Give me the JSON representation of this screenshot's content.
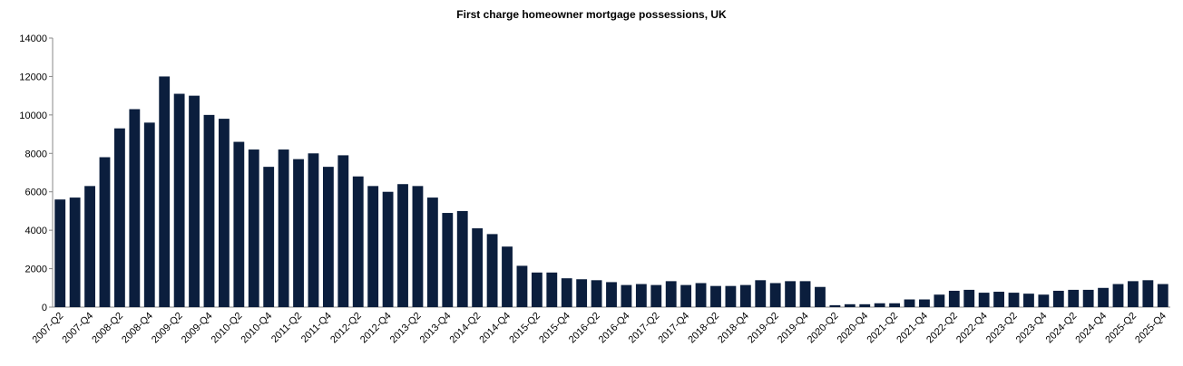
{
  "chart_data": {
    "type": "bar",
    "title": "First charge homeowner mortgage possessions, UK",
    "categories": [
      "2007-Q2",
      null,
      "2007-Q4",
      null,
      "2008-Q2",
      null,
      "2008-Q4",
      null,
      "2009-Q2",
      null,
      "2009-Q4",
      null,
      "2010-Q2",
      null,
      "2010-Q4",
      null,
      "2011-Q2",
      null,
      "2011-Q4",
      null,
      "2012-Q2",
      null,
      "2012-Q4",
      null,
      "2013-Q2",
      null,
      "2013-Q4",
      null,
      "2014-Q2",
      null,
      "2014-Q4",
      null,
      "2015-Q2",
      null,
      "2015-Q4",
      null,
      "2016-Q2",
      null,
      "2016-Q4",
      null,
      "2017-Q2",
      null,
      "2017-Q4",
      null,
      "2018-Q2",
      null,
      "2018-Q4",
      null,
      "2019-Q2",
      null,
      "2019-Q4",
      null,
      "2020-Q2",
      null,
      "2020-Q4",
      null,
      "2021-Q2",
      null,
      "2021-Q4",
      null,
      "2022-Q2",
      null,
      "2022-Q4",
      null,
      "2023-Q2",
      null,
      "2023-Q4",
      null,
      "2024-Q2",
      null,
      "2024-Q4",
      null,
      "2025-Q2",
      null,
      "2025-Q4"
    ],
    "values": [
      5600,
      5700,
      6300,
      7800,
      9300,
      10300,
      9600,
      12000,
      11100,
      11000,
      10000,
      9800,
      8600,
      8200,
      7300,
      8200,
      7700,
      8000,
      7300,
      7900,
      6800,
      6300,
      6000,
      6400,
      6300,
      5700,
      4900,
      5000,
      4100,
      3800,
      3150,
      2150,
      1800,
      1800,
      1500,
      1450,
      1400,
      1300,
      1150,
      1200,
      1150,
      1350,
      1150,
      1250,
      1100,
      1100,
      1150,
      1400,
      1250,
      1350,
      1350,
      1050,
      100,
      150,
      150,
      200,
      200,
      400,
      400,
      650,
      850,
      900,
      750,
      800,
      750,
      700,
      650,
      850,
      900,
      900,
      1000,
      1200,
      1350,
      1400,
      1200
    ],
    "color": "#0b1e3d",
    "ylim": [
      0,
      14000
    ],
    "yticks": [
      0,
      2000,
      4000,
      6000,
      8000,
      10000,
      12000,
      14000
    ],
    "grid": false
  }
}
